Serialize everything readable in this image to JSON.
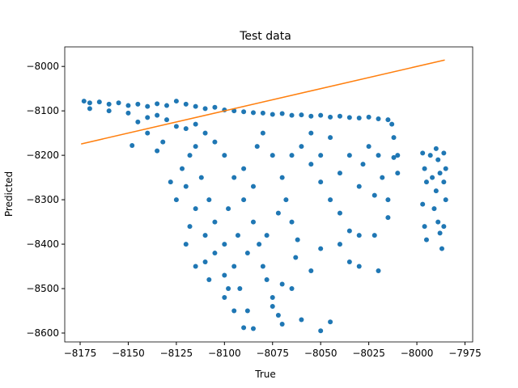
{
  "chart_data": {
    "type": "scatter",
    "title": "Test data",
    "xlabel": "True",
    "ylabel": "Predicted",
    "xlim": [
      -8183,
      -7971
    ],
    "ylim": [
      -8620,
      -7956
    ],
    "xticks": [
      {
        "value": -8175,
        "label": "−8175"
      },
      {
        "value": -8150,
        "label": "−8150"
      },
      {
        "value": -8125,
        "label": "−8125"
      },
      {
        "value": -8100,
        "label": "−8100"
      },
      {
        "value": -8075,
        "label": "−8075"
      },
      {
        "value": -8050,
        "label": "−8050"
      },
      {
        "value": -8025,
        "label": "−8025"
      },
      {
        "value": -8000,
        "label": "−8000"
      },
      {
        "value": -7975,
        "label": "−7975"
      }
    ],
    "yticks": [
      {
        "value": -8600,
        "label": "−8600"
      },
      {
        "value": -8500,
        "label": "−8500"
      },
      {
        "value": -8400,
        "label": "−8400"
      },
      {
        "value": -8300,
        "label": "−8300"
      },
      {
        "value": -8200,
        "label": "−8200"
      },
      {
        "value": -8100,
        "label": "−8100"
      },
      {
        "value": -8000,
        "label": "−8000"
      }
    ],
    "series": [
      {
        "type": "scatter",
        "color": "#1f77b4",
        "x": [
          -8173,
          -8170,
          -8165,
          -8160,
          -8155,
          -8150,
          -8145,
          -8140,
          -8135,
          -8130,
          -8125,
          -8120,
          -8115,
          -8110,
          -8105,
          -8100,
          -8095,
          -8090,
          -8085,
          -8080,
          -8075,
          -8070,
          -8065,
          -8060,
          -8055,
          -8050,
          -8045,
          -8040,
          -8035,
          -8030,
          -8025,
          -8020,
          -8015,
          -8013,
          -8170,
          -8160,
          -8150,
          -8145,
          -8140,
          -8135,
          -8130,
          -8148,
          -8125,
          -8120,
          -8115,
          -8110,
          -8118,
          -8112,
          -8108,
          -8105,
          -8100,
          -8095,
          -8092,
          -8088,
          -8085,
          -8090,
          -8100,
          -8095,
          -8090,
          -8085,
          -8082,
          -8080,
          -8078,
          -8075,
          -8072,
          -8080,
          -8075,
          -8070,
          -8068,
          -8065,
          -8062,
          -8060,
          -8055,
          -8050,
          -8045,
          -8040,
          -8035,
          -8030,
          -8055,
          -8045,
          -8035,
          -8025,
          -8020,
          -8018,
          -8015,
          -8015,
          -8012,
          -8012,
          -8105,
          -8115,
          -8120,
          -8115,
          -8110,
          -8105,
          -8100,
          -8098,
          -8110,
          -8115,
          -8120,
          -8118,
          -8125,
          -8122,
          -8135,
          -8140,
          -8132,
          -8128,
          -8108,
          -8100,
          -8095,
          -8070,
          -8060,
          -8050,
          -8045,
          -8055,
          -8050,
          -8040,
          -8035,
          -8030,
          -8022,
          -8020,
          -8063,
          -8070,
          -8075,
          -8065,
          -8090,
          -8085,
          -8098,
          -8093,
          -8088,
          -8078,
          -8072,
          -8083,
          -8065,
          -8050,
          -8040,
          -8030,
          -8028,
          -8022,
          -8010,
          -8010,
          -7997,
          -7996,
          -7995,
          -7997,
          -7996,
          -7995,
          -7993,
          -7992,
          -7990,
          -7989,
          -7988,
          -7990,
          -7991,
          -7989,
          -7988,
          -7986,
          -7985,
          -7986,
          -7985,
          -7986,
          -7987
        ],
        "values": [
          -8078,
          -8082,
          -8080,
          -8085,
          -8082,
          -8088,
          -8085,
          -8090,
          -8084,
          -8088,
          -8078,
          -8085,
          -8090,
          -8095,
          -8092,
          -8098,
          -8100,
          -8102,
          -8104,
          -8105,
          -8108,
          -8106,
          -8110,
          -8109,
          -8112,
          -8110,
          -8114,
          -8112,
          -8115,
          -8116,
          -8114,
          -8118,
          -8120,
          -8130,
          -8095,
          -8100,
          -8105,
          -8125,
          -8115,
          -8110,
          -8120,
          -8178,
          -8135,
          -8140,
          -8130,
          -8150,
          -8200,
          -8250,
          -8300,
          -8350,
          -8400,
          -8450,
          -8500,
          -8550,
          -8590,
          -8588,
          -8200,
          -8250,
          -8300,
          -8350,
          -8400,
          -8450,
          -8480,
          -8520,
          -8560,
          -8150,
          -8200,
          -8250,
          -8300,
          -8350,
          -8390,
          -8180,
          -8220,
          -8260,
          -8300,
          -8330,
          -8370,
          -8380,
          -8150,
          -8160,
          -8200,
          -8180,
          -8200,
          -8250,
          -8300,
          -8340,
          -8160,
          -8205,
          -8170,
          -8180,
          -8270,
          -8320,
          -8380,
          -8420,
          -8470,
          -8500,
          -8440,
          -8450,
          -8400,
          -8360,
          -8300,
          -8230,
          -8190,
          -8150,
          -8170,
          -8260,
          -8480,
          -8520,
          -8550,
          -8580,
          -8570,
          -8595,
          -8575,
          -8460,
          -8410,
          -8400,
          -8440,
          -8450,
          -8380,
          -8460,
          -8430,
          -8490,
          -8540,
          -8500,
          -8230,
          -8270,
          -8320,
          -8380,
          -8420,
          -8380,
          -8330,
          -8180,
          -8200,
          -8200,
          -8240,
          -8270,
          -8220,
          -8290,
          -8200,
          -8240,
          -8195,
          -8230,
          -8260,
          -8310,
          -8360,
          -8390,
          -8200,
          -8250,
          -8185,
          -8210,
          -8240,
          -8280,
          -8320,
          -8350,
          -8375,
          -8195,
          -8230,
          -8260,
          -8300,
          -8360,
          -8410
        ]
      },
      {
        "type": "line",
        "color": "#ff7f0e",
        "x": [
          -8174.5,
          -7985.5
        ],
        "values": [
          -8174.5,
          -7985.5
        ]
      }
    ]
  }
}
